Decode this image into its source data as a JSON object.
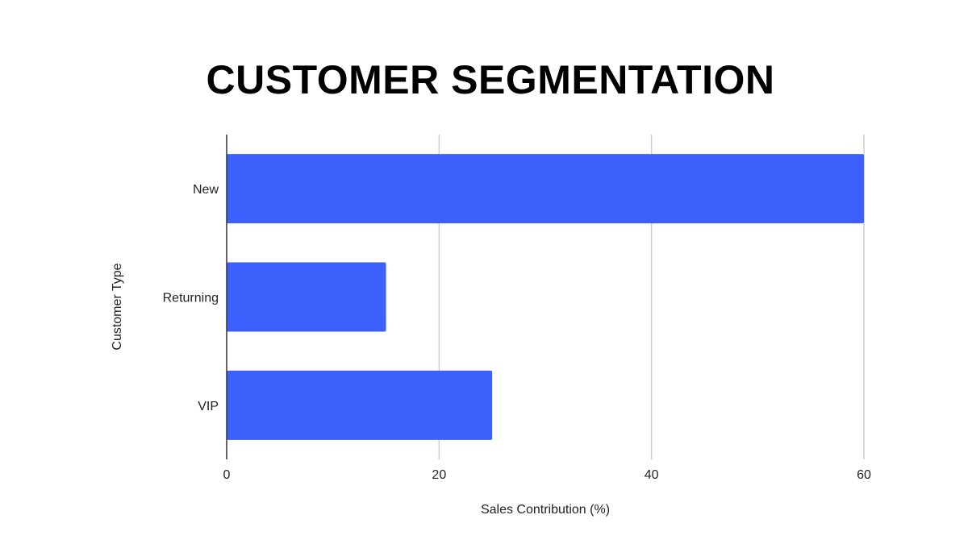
{
  "chart_data": {
    "type": "bar",
    "orientation": "horizontal",
    "title": "CUSTOMER SEGMENTATION",
    "xlabel": "Sales Contribution (%)",
    "ylabel": "Customer Type",
    "categories": [
      "New",
      "Returning",
      "VIP"
    ],
    "values": [
      60,
      15,
      25
    ],
    "xlim": [
      0,
      60
    ],
    "xticks": [
      0,
      20,
      40,
      60
    ],
    "grid": "vertical",
    "legend": "none",
    "bar_color": "#3d5ffb"
  }
}
